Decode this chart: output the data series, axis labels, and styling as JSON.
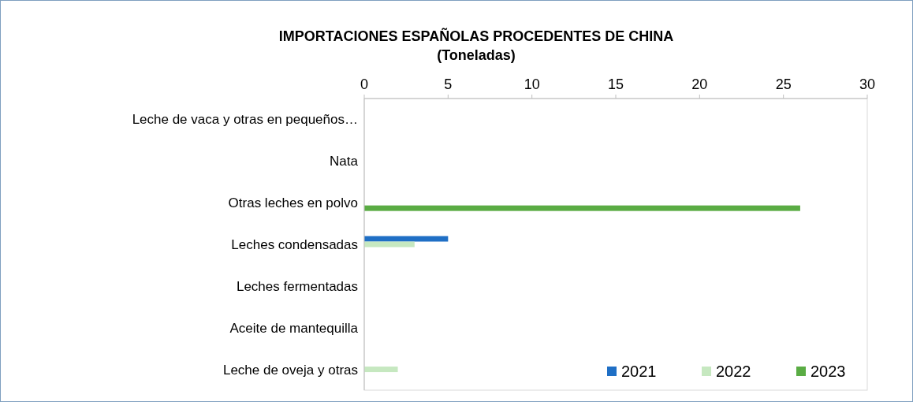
{
  "chart_data": {
    "type": "bar",
    "orientation": "horizontal",
    "title": "IMPORTACIONES ESPAÑOLAS PROCEDENTES DE CHINA",
    "subtitle": "(Toneladas)",
    "categories": [
      "Leche de vaca y otras en pequeños…",
      "Nata",
      "Otras leches en polvo",
      "Leches condensadas",
      "Leches fermentadas",
      "Aceite de mantequilla",
      "Leche de oveja y otras"
    ],
    "series": [
      {
        "name": "2021",
        "color": "#1f6fc5",
        "values": [
          0,
          0,
          0,
          5,
          0,
          0,
          0
        ]
      },
      {
        "name": "2022",
        "color": "#c6e8c0",
        "values": [
          0,
          0,
          0,
          3,
          0,
          0,
          2
        ]
      },
      {
        "name": "2023",
        "color": "#5aac44",
        "values": [
          0,
          0,
          26,
          0,
          0,
          0,
          0
        ]
      }
    ],
    "xlim": [
      0,
      30
    ],
    "xticks": [
      0,
      5,
      10,
      15,
      20,
      25,
      30
    ],
    "grid": false,
    "legend": "bottom right"
  }
}
